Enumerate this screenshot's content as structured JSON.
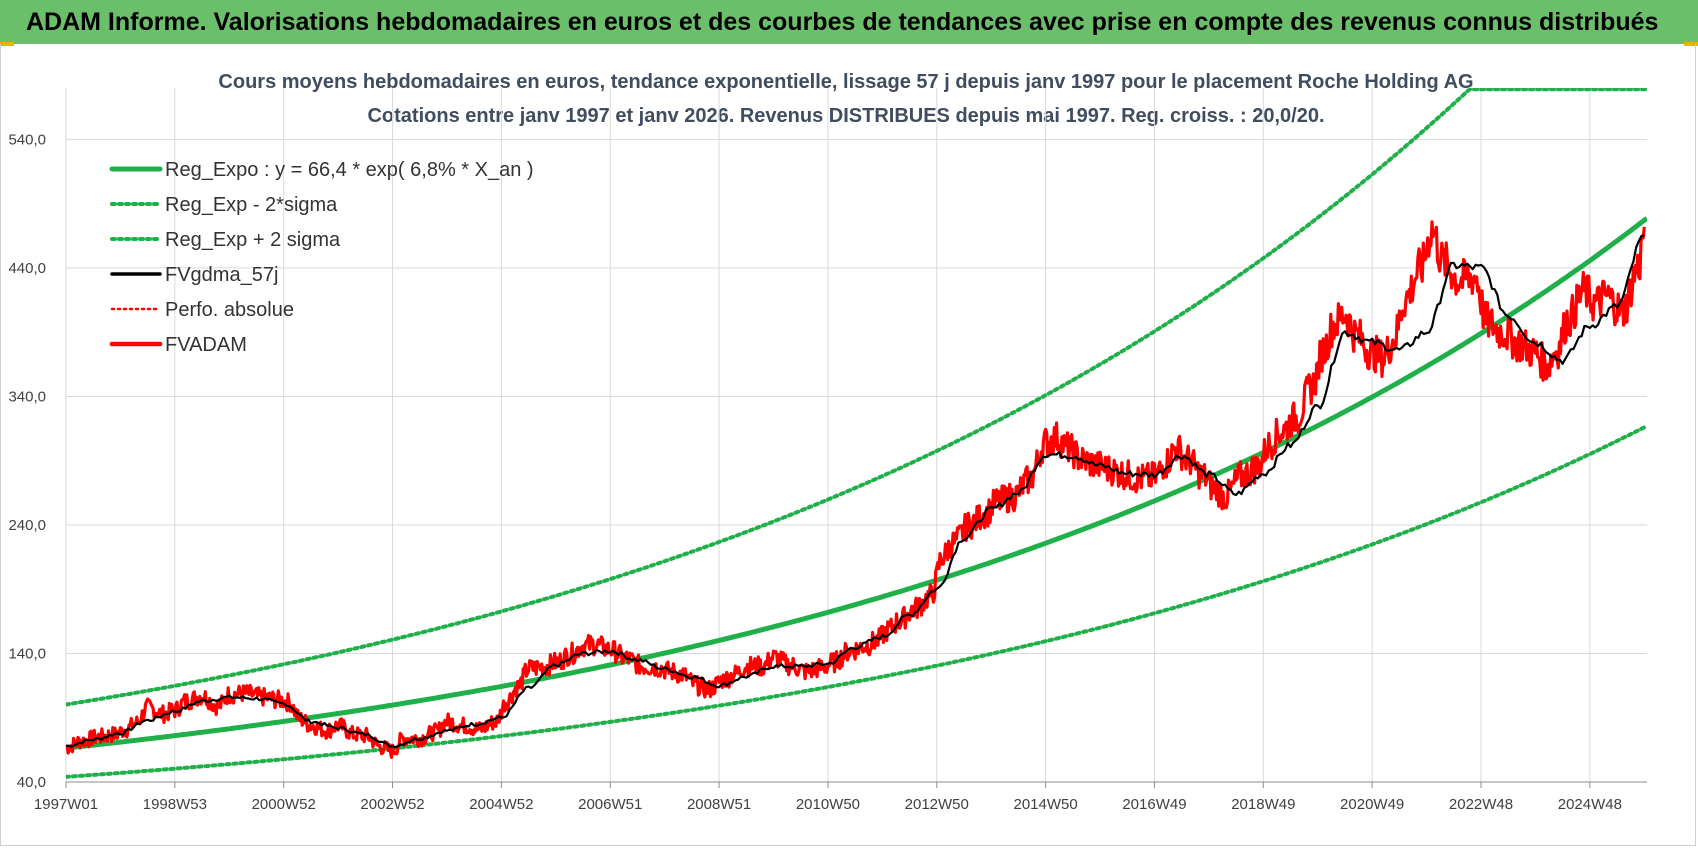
{
  "header": {
    "title": "ADAM Informe. Valorisations hebdomadaires en euros et des courbes de tendances avec prise en compte des revenus connus distribués"
  },
  "colors": {
    "banner": "#6cbf6a",
    "trend": "#1fb04a",
    "fvadam": "#ff0000",
    "gdma": "#000000",
    "grid": "#d9d9d9"
  },
  "chart_data": {
    "type": "line",
    "title": "Cours moyens hebdomadaires en euros, tendance exponentielle, lissage 57 j depuis janv 1997 pour le placement Roche Holding AG",
    "subtitle": "Cotations entre janv 1997 et janv 2026. Revenus DISTRIBUES depuis mai 1997. Reg. croiss. : 20,0/20.",
    "xlabel": "",
    "ylabel": "",
    "x_range": [
      1997.0,
      2026.05
    ],
    "ylim": [
      40,
      580
    ],
    "yticks": [
      40,
      140,
      240,
      340,
      440,
      540
    ],
    "ytick_labels": [
      "40,0",
      "140,0",
      "240,0",
      "340,0",
      "440,0",
      "540,0"
    ],
    "xticks": [
      {
        "label": "1997W01",
        "x": 1997.0
      },
      {
        "label": "1998W53",
        "x": 1999.0
      },
      {
        "label": "2000W52",
        "x": 2001.0
      },
      {
        "label": "2002W52",
        "x": 2003.0
      },
      {
        "label": "2004W52",
        "x": 2005.0
      },
      {
        "label": "2006W51",
        "x": 2007.0
      },
      {
        "label": "2008W51",
        "x": 2009.0
      },
      {
        "label": "2010W50",
        "x": 2011.0
      },
      {
        "label": "2012W50",
        "x": 2013.0
      },
      {
        "label": "2014W50",
        "x": 2015.0
      },
      {
        "label": "2016W49",
        "x": 2017.0
      },
      {
        "label": "2018W49",
        "x": 2019.0
      },
      {
        "label": "2020W49",
        "x": 2021.0
      },
      {
        "label": "2022W48",
        "x": 2023.0
      },
      {
        "label": "2024W48",
        "x": 2025.0
      }
    ],
    "grid": true,
    "legend_position": "top-left",
    "trend": {
      "a": 66.4,
      "rate": 0.068,
      "sigma_factor": 1.51
    },
    "series": [
      {
        "name": "Reg_Expo : y = 66,4 * exp( 6,8% *  X_an )",
        "style": "solid-green"
      },
      {
        "name": "Reg_Exp - 2*sigma",
        "style": "dotted-green"
      },
      {
        "name": "Reg_Exp + 2 sigma",
        "style": "dotted-green"
      },
      {
        "name": "FVgdma_57j",
        "style": "solid-black"
      },
      {
        "name": "Perfo. absolue",
        "style": "dotted-red"
      },
      {
        "name": "FVADAM",
        "style": "solid-red",
        "x": [
          1997.0,
          1997.3,
          1997.6,
          1997.9,
          1998.1,
          1998.3,
          1998.5,
          1998.8,
          1999.0,
          1999.2,
          1999.5,
          1999.8,
          2000.0,
          2000.3,
          2000.6,
          2000.9,
          2001.1,
          2001.3,
          2001.5,
          2001.8,
          2002.0,
          2002.3,
          2002.5,
          2002.8,
          2003.0,
          2003.2,
          2003.5,
          2003.8,
          2004.0,
          2004.3,
          2004.6,
          2004.9,
          2005.1,
          2005.3,
          2005.5,
          2005.8,
          2006.0,
          2006.3,
          2006.5,
          2006.7,
          2007.0,
          2007.3,
          2007.6,
          2007.9,
          2008.1,
          2008.3,
          2008.6,
          2008.8,
          2009.1,
          2009.3,
          2009.5,
          2009.8,
          2010.0,
          2010.3,
          2010.6,
          2010.9,
          2011.1,
          2011.4,
          2011.7,
          2011.9,
          2012.1,
          2012.3,
          2012.6,
          2012.9,
          2013.1,
          2013.3,
          2013.6,
          2013.9,
          2014.1,
          2014.4,
          2014.7,
          2015.0,
          2015.2,
          2015.4,
          2015.7,
          2016.0,
          2016.2,
          2016.4,
          2016.7,
          2017.0,
          2017.2,
          2017.4,
          2017.6,
          2017.9,
          2018.1,
          2018.3,
          2018.6,
          2018.9,
          2019.1,
          2019.3,
          2019.6,
          2019.9,
          2020.1,
          2020.3,
          2020.5,
          2020.7,
          2021.0,
          2021.2,
          2021.4,
          2021.6,
          2021.9,
          2022.1,
          2022.3,
          2022.6,
          2022.9,
          2023.1,
          2023.4,
          2023.7,
          2024.0,
          2024.2,
          2024.4,
          2024.6,
          2024.9,
          2025.1,
          2025.3,
          2025.6,
          2025.9,
          2026.0
        ],
        "values": [
          67,
          72,
          75,
          77,
          81,
          86,
          98,
          93,
          96,
          103,
          107,
          99,
          108,
          109,
          106,
          104,
          102,
          89,
          84,
          80,
          84,
          77,
          76,
          67,
          64,
          74,
          74,
          79,
          87,
          84,
          81,
          87,
          103,
          114,
          128,
          130,
          133,
          140,
          146,
          147,
          143,
          136,
          130,
          129,
          126,
          124,
          115,
          112,
          120,
          124,
          130,
          130,
          137,
          131,
          126,
          129,
          133,
          142,
          146,
          150,
          158,
          165,
          175,
          185,
          215,
          226,
          240,
          249,
          258,
          262,
          275,
          304,
          308,
          300,
          290,
          286,
          283,
          280,
          276,
          277,
          288,
          300,
          291,
          278,
          268,
          262,
          278,
          285,
          302,
          312,
          323,
          348,
          375,
          396,
          404,
          388,
          374,
          370,
          384,
          415,
          440,
          470,
          445,
          430,
          433,
          398,
          390,
          381,
          374,
          364,
          376,
          400,
          422,
          412,
          418,
          406,
          441,
          472
        ]
      },
      {
        "name": "FVgdma_57j-values",
        "style": "data-only",
        "x": [
          1997.0,
          1997.5,
          1998.0,
          1998.5,
          1999.0,
          1999.5,
          2000.0,
          2000.5,
          2001.0,
          2001.5,
          2002.0,
          2002.5,
          2003.0,
          2003.5,
          2004.0,
          2004.5,
          2005.0,
          2005.5,
          2006.0,
          2006.5,
          2007.0,
          2007.5,
          2008.0,
          2008.5,
          2009.0,
          2009.5,
          2010.0,
          2010.5,
          2011.0,
          2011.5,
          2012.0,
          2012.5,
          2013.0,
          2013.5,
          2014.0,
          2014.5,
          2015.0,
          2015.5,
          2016.0,
          2016.5,
          2017.0,
          2017.5,
          2018.0,
          2018.5,
          2019.0,
          2019.5,
          2020.0,
          2020.5,
          2021.0,
          2021.5,
          2022.0,
          2022.5,
          2023.0,
          2023.5,
          2024.0,
          2024.5,
          2025.0,
          2025.5,
          2026.0
        ],
        "values": [
          68,
          73,
          78,
          88,
          95,
          103,
          106,
          105,
          101,
          87,
          82,
          77,
          68,
          74,
          80,
          85,
          90,
          113,
          131,
          140,
          142,
          135,
          128,
          122,
          115,
          122,
          130,
          130,
          132,
          145,
          153,
          170,
          190,
          230,
          252,
          265,
          295,
          294,
          286,
          280,
          279,
          294,
          279,
          264,
          280,
          302,
          332,
          390,
          382,
          376,
          390,
          442,
          440,
          403,
          382,
          368,
          395,
          410,
          465
        ]
      }
    ]
  }
}
